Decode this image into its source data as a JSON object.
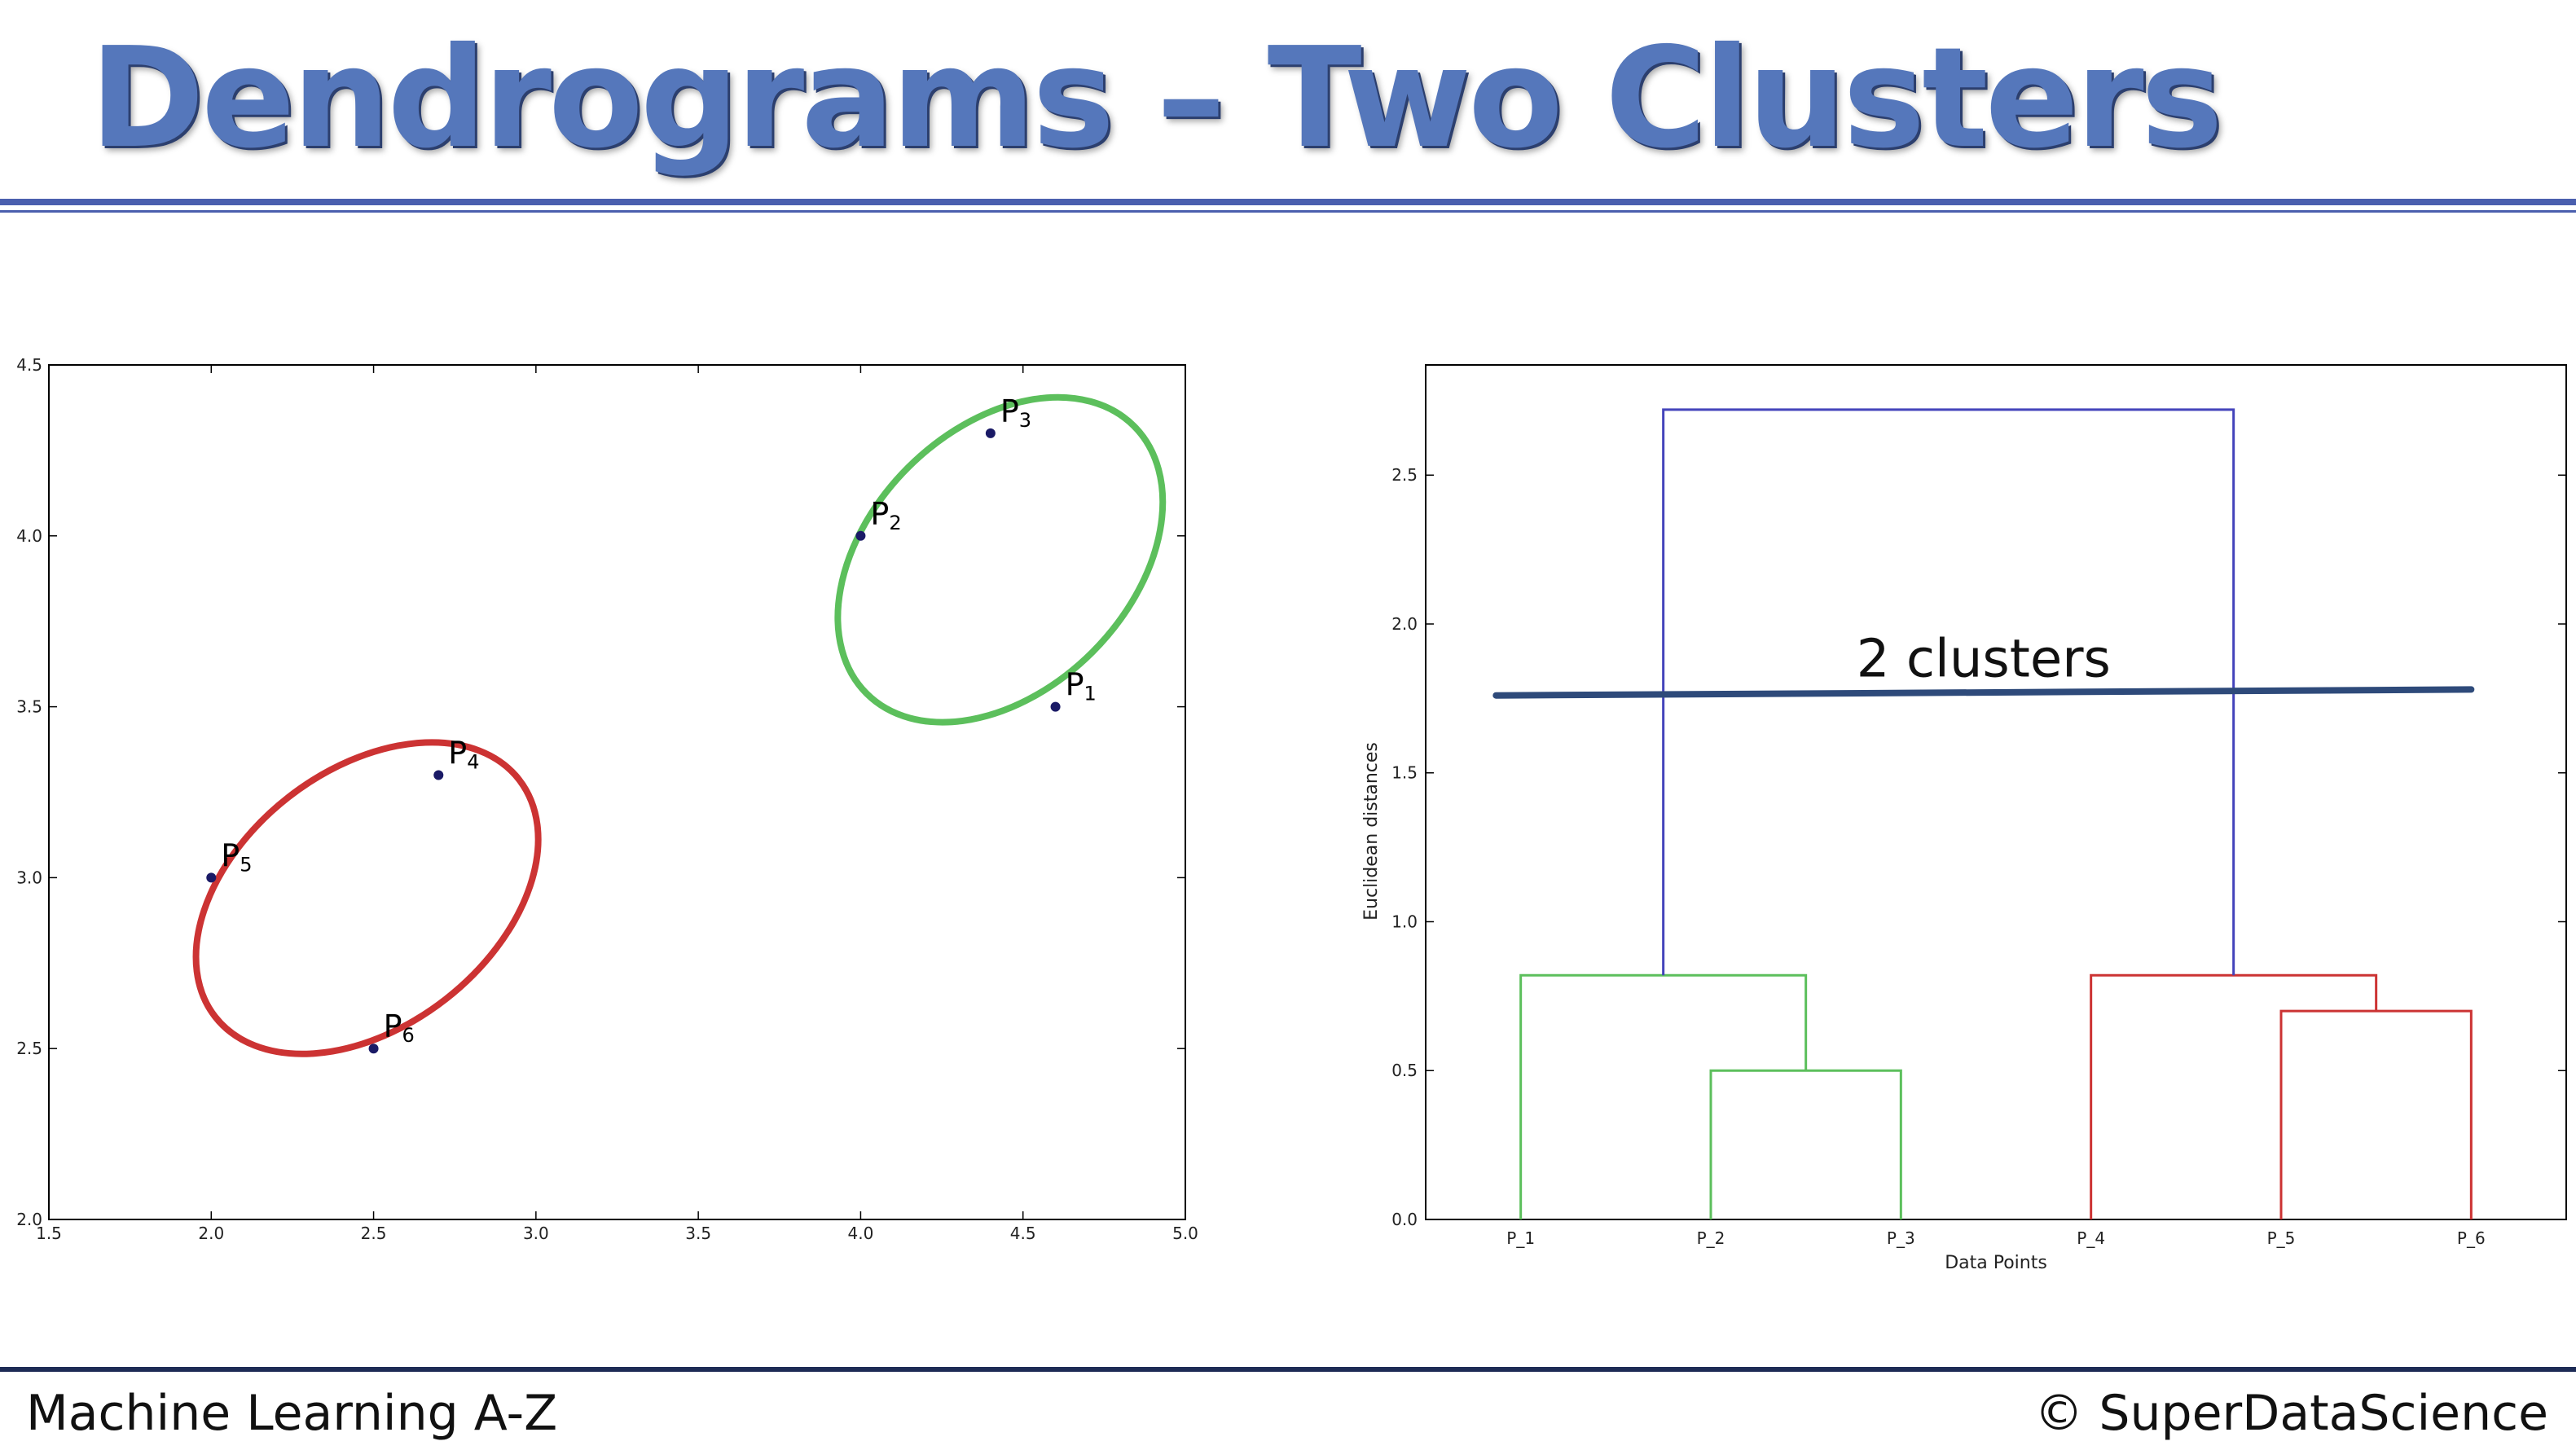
{
  "slide": {
    "title": "Dendrograms – Two Clusters",
    "footer_left": "Machine Learning A-Z",
    "footer_right": "© SuperDataScience"
  },
  "colors": {
    "title": "#5577bb",
    "rule": "#4a5fae",
    "cluster_red": "#cc3333",
    "cluster_green": "#5cbf5c",
    "top_link": "#4444bb",
    "cut_line": "#2e4a7a",
    "point": "#1a1a66"
  },
  "chart_data": [
    {
      "type": "scatter",
      "xlim": [
        1.5,
        5.0
      ],
      "ylim": [
        2.0,
        4.5
      ],
      "xticks": [
        1.5,
        2.0,
        2.5,
        3.0,
        3.5,
        4.0,
        4.5,
        5.0
      ],
      "yticks": [
        2.0,
        2.5,
        3.0,
        3.5,
        4.0,
        4.5
      ],
      "xtick_labels": [
        "1.5",
        "2.0",
        "2.5",
        "3.0",
        "3.5",
        "4.0",
        "4.5",
        "5.0"
      ],
      "ytick_labels": [
        "2.0",
        "2.5",
        "3.0",
        "3.5",
        "4.0",
        "4.5"
      ],
      "grid": false,
      "points": [
        {
          "label": "P",
          "sub": "1",
          "x": 4.6,
          "y": 3.5
        },
        {
          "label": "P",
          "sub": "2",
          "x": 4.0,
          "y": 4.0
        },
        {
          "label": "P",
          "sub": "3",
          "x": 4.4,
          "y": 4.3
        },
        {
          "label": "P",
          "sub": "4",
          "x": 2.7,
          "y": 3.3
        },
        {
          "label": "P",
          "sub": "5",
          "x": 2.0,
          "y": 3.0
        },
        {
          "label": "P",
          "sub": "6",
          "x": 2.5,
          "y": 2.5
        }
      ],
      "clusters": [
        {
          "color": "green",
          "members": [
            "P1",
            "P2",
            "P3"
          ],
          "center": [
            4.43,
            3.93
          ],
          "rx": 0.52,
          "ry": 0.53,
          "tilt_deg": -45
        },
        {
          "color": "red",
          "members": [
            "P4",
            "P5",
            "P6"
          ],
          "center": [
            2.48,
            2.94
          ],
          "rx": 0.53,
          "ry": 0.52,
          "tilt_deg": -38
        }
      ]
    },
    {
      "type": "dendrogram",
      "xlabel": "Data Points",
      "ylabel": "Euclidean distances",
      "ylim": [
        0.0,
        2.87
      ],
      "yticks": [
        0.0,
        0.5,
        1.0,
        1.5,
        2.0,
        2.5
      ],
      "ytick_labels": [
        "0.0",
        "0.5",
        "1.0",
        "1.5",
        "2.0",
        "2.5"
      ],
      "leaves": [
        "P_1",
        "P_2",
        "P_3",
        "P_4",
        "P_5",
        "P_6"
      ],
      "merges": [
        {
          "left_x": 2,
          "right_x": 3,
          "height": 0.5,
          "left_h": 0,
          "right_h": 0,
          "color": "green"
        },
        {
          "left_x": 1,
          "right_x": 2.5,
          "height": 0.82,
          "left_h": 0,
          "right_h": 0.5,
          "color": "green"
        },
        {
          "left_x": 5,
          "right_x": 6,
          "height": 0.7,
          "left_h": 0,
          "right_h": 0,
          "color": "red"
        },
        {
          "left_x": 4,
          "right_x": 5.5,
          "height": 0.82,
          "left_h": 0,
          "right_h": 0.7,
          "color": "red"
        },
        {
          "left_x": 1.75,
          "right_x": 4.75,
          "height": 2.72,
          "left_h": 0.82,
          "right_h": 0.82,
          "color": "blue"
        }
      ],
      "cut_line": {
        "y_start": 1.76,
        "y_end": 1.78,
        "x_start": 0.87,
        "x_end": 6.0
      },
      "annotation": "2 clusters"
    }
  ]
}
